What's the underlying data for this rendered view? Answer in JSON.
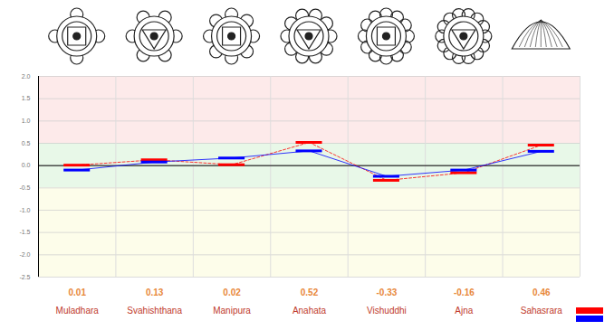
{
  "chart_data": {
    "type": "line",
    "categories": [
      "Muladhara",
      "Svahishthana",
      "Manipura",
      "Anahata",
      "Vishuddhi",
      "Ajna",
      "Sahasrara"
    ],
    "series": [
      {
        "color": "#ff0000",
        "values": [
          0.01,
          0.13,
          0.02,
          0.52,
          -0.33,
          -0.16,
          0.46
        ],
        "line_style": "dashed",
        "marker": "dash",
        "data_labels": true
      },
      {
        "color": "#0000ff",
        "values": [
          -0.1,
          0.08,
          0.17,
          0.33,
          -0.24,
          -0.1,
          0.32
        ],
        "line_style": "solid",
        "marker": "dash",
        "data_labels": false
      }
    ],
    "ylim": [
      -2.5,
      2
    ],
    "yticks": [
      {
        "value": 2,
        "label": "2.0"
      },
      {
        "value": 1.5,
        "label": "1.5"
      },
      {
        "value": 1,
        "label": "1.0"
      },
      {
        "value": 0.5,
        "label": "0.5"
      },
      {
        "value": 0,
        "label": "0.0"
      },
      {
        "value": -0.5,
        "label": "-0.5"
      },
      {
        "value": -1,
        "label": "-1.0"
      },
      {
        "value": -1.5,
        "label": "-1.5"
      },
      {
        "value": -2,
        "label": "-2.0"
      },
      {
        "value": -2.5,
        "label": "-2.5"
      }
    ],
    "grid": true,
    "legend": "bottom-right",
    "bands": [
      {
        "from": 0.5,
        "to": 2,
        "color": "#fdeaea"
      },
      {
        "from": -0.5,
        "to": 0.5,
        "color": "#e8f8e8"
      },
      {
        "from": -2.5,
        "to": -0.5,
        "color": "#fdfdea"
      }
    ]
  }
}
